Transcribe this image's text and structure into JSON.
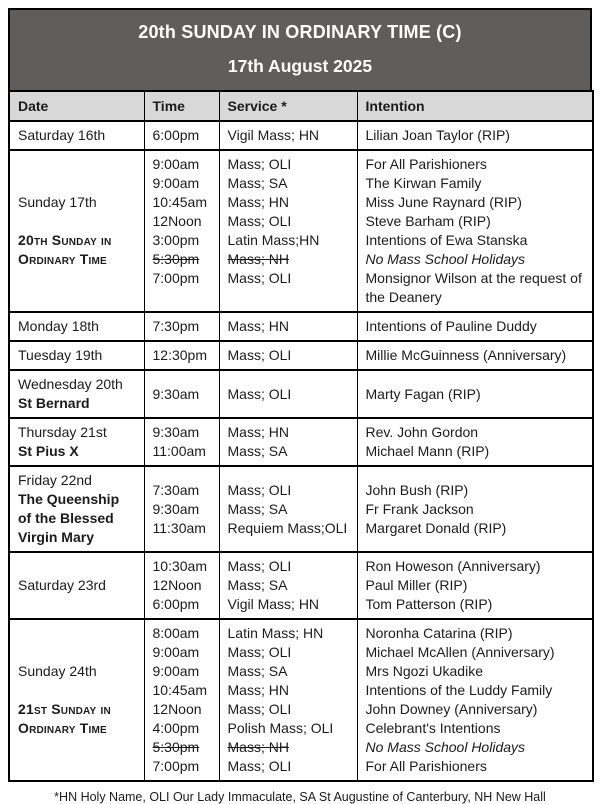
{
  "title": {
    "line1": "20th SUNDAY IN ORDINARY TIME (C)",
    "line2": "17th August 2025"
  },
  "columns": [
    "Date",
    "Time",
    "Service *",
    "Intention"
  ],
  "rows": [
    {
      "date": "Saturday 16th",
      "masses": [
        {
          "time": "6:00pm",
          "service": "Vigil Mass; HN",
          "intention": "Lilian Joan Taylor (RIP)"
        }
      ]
    },
    {
      "date": "Sunday 17th",
      "feast": "20th Sunday in Ordinary Time",
      "feast_smallcaps": true,
      "feast_gap": true,
      "align_top": true,
      "masses": [
        {
          "time": "9:00am",
          "service": "Mass; OLI",
          "intention": "For All Parishioners"
        },
        {
          "time": "9:00am",
          "service": "Mass; SA",
          "intention": "The Kirwan Family"
        },
        {
          "time": "10:45am",
          "service": "Mass; HN",
          "intention": "Miss June Raynard (RIP)"
        },
        {
          "time": "12Noon",
          "service": "Mass; OLI",
          "intention": "Steve Barham (RIP)"
        },
        {
          "time": "3:00pm",
          "service": "Latin Mass;HN",
          "intention": "Intentions of Ewa Stanska"
        },
        {
          "time": "5:30pm",
          "service": "Mass; NH",
          "intention": "No Mass School Holidays",
          "cancelled": true,
          "intention_italic": true
        },
        {
          "time": "7:00pm",
          "service": "Mass; OLI",
          "intention": "Monsignor Wilson at the request of the Deanery"
        }
      ]
    },
    {
      "date": "Monday 18th",
      "masses": [
        {
          "time": "7:30pm",
          "service": "Mass; HN",
          "intention": "Intentions of Pauline Duddy"
        }
      ]
    },
    {
      "date": "Tuesday 19th",
      "masses": [
        {
          "time": "12:30pm",
          "service": "Mass; OLI",
          "intention": "Millie McGuinness (Anniversary)"
        }
      ]
    },
    {
      "date": "Wednesday 20th",
      "feast": "St Bernard",
      "masses": [
        {
          "time": "9:30am",
          "service": "Mass; OLI",
          "intention": "Marty Fagan (RIP)"
        }
      ]
    },
    {
      "date": "Thursday 21st",
      "feast": "St Pius X",
      "masses": [
        {
          "time": "9:30am",
          "service": "Mass; HN",
          "intention": "Rev. John Gordon"
        },
        {
          "time": "11:00am",
          "service": "Mass; SA",
          "intention": "Michael Mann (RIP)"
        }
      ]
    },
    {
      "date": "Friday 22nd",
      "feast": "The Queenship of the Blessed Virgin Mary",
      "masses": [
        {
          "time": "7:30am",
          "service": "Mass; OLI",
          "intention": "John Bush (RIP)"
        },
        {
          "time": "9:30am",
          "service": "Mass; SA",
          "intention": "Fr Frank Jackson"
        },
        {
          "time": "11:30am",
          "service": "Requiem Mass;OLI",
          "intention": "Margaret Donald (RIP)"
        }
      ]
    },
    {
      "date": "Saturday 23rd",
      "masses": [
        {
          "time": "10:30am",
          "service": "Mass; OLI",
          "intention": "Ron Howeson (Anniversary)"
        },
        {
          "time": "12Noon",
          "service": "Mass; SA",
          "intention": "Paul Miller (RIP)"
        },
        {
          "time": "6:00pm",
          "service": "Vigil Mass; HN",
          "intention": "Tom Patterson (RIP)"
        }
      ]
    },
    {
      "date": "Sunday 24th",
      "feast": "21st Sunday in Ordinary Time",
      "feast_smallcaps": true,
      "feast_gap": true,
      "align_top": true,
      "masses": [
        {
          "time": "8:00am",
          "service": "Latin Mass; HN",
          "intention": "Noronha Catarina (RIP)"
        },
        {
          "time": "9:00am",
          "service": "Mass; OLI",
          "intention": "Michael McAllen (Anniversary)"
        },
        {
          "time": "9:00am",
          "service": "Mass; SA",
          "intention": "Mrs Ngozi Ukadike"
        },
        {
          "time": "10:45am",
          "service": "Mass; HN",
          "intention": "Intentions of the Luddy Family"
        },
        {
          "time": "12Noon",
          "service": "Mass; OLI",
          "intention": "John Downey (Anniversary)"
        },
        {
          "time": "4:00pm",
          "service": "Polish Mass; OLI",
          "intention": "Celebrant's Intentions"
        },
        {
          "time": "5:30pm",
          "service": "Mass; NH",
          "intention": "No Mass School Holidays",
          "cancelled": true,
          "intention_italic": true
        },
        {
          "time": "7:00pm",
          "service": "Mass; OLI",
          "intention": "For All Parishioners"
        }
      ]
    }
  ],
  "footnote": "*HN Holy Name, OLI Our Lady Immaculate, SA St Augustine of Canterbury, NH New Hall",
  "colors": {
    "title_bg": "#5f5e5c",
    "header_bg": "#d8d8d8",
    "border": "#000000",
    "text": "#1b1b1b"
  }
}
